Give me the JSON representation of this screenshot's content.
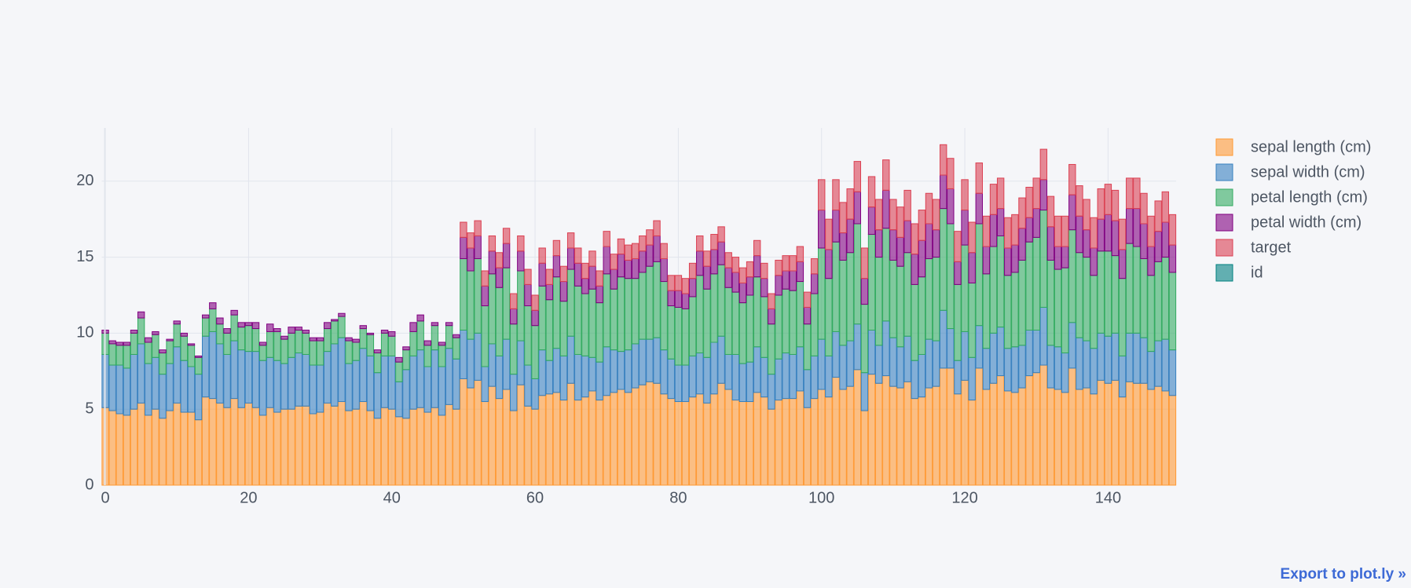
{
  "chart_data": {
    "type": "bar",
    "barmode": "stack",
    "x": [
      0,
      1,
      2,
      3,
      4,
      5,
      6,
      7,
      8,
      9,
      10,
      11,
      12,
      13,
      14,
      15,
      16,
      17,
      18,
      19,
      20,
      21,
      22,
      23,
      24,
      25,
      26,
      27,
      28,
      29,
      30,
      31,
      32,
      33,
      34,
      35,
      36,
      37,
      38,
      39,
      40,
      41,
      42,
      43,
      44,
      45,
      46,
      47,
      48,
      49,
      50,
      51,
      52,
      53,
      54,
      55,
      56,
      57,
      58,
      59,
      60,
      61,
      62,
      63,
      64,
      65,
      66,
      67,
      68,
      69,
      70,
      71,
      72,
      73,
      74,
      75,
      76,
      77,
      78,
      79,
      80,
      81,
      82,
      83,
      84,
      85,
      86,
      87,
      88,
      89,
      90,
      91,
      92,
      93,
      94,
      95,
      96,
      97,
      98,
      99,
      100,
      101,
      102,
      103,
      104,
      105,
      106,
      107,
      108,
      109,
      110,
      111,
      112,
      113,
      114,
      115,
      116,
      117,
      118,
      119,
      120,
      121,
      122,
      123,
      124,
      125,
      126,
      127,
      128,
      129,
      130,
      131,
      132,
      133,
      134,
      135,
      136,
      137,
      138,
      139,
      140,
      141,
      142,
      143,
      144,
      145,
      146,
      147,
      148,
      149
    ],
    "series": [
      {
        "name": "sepal length (cm)",
        "color": "#ff9933",
        "values": [
          5.1,
          4.9,
          4.7,
          4.6,
          5.0,
          5.4,
          4.6,
          5.0,
          4.4,
          4.9,
          5.4,
          4.8,
          4.8,
          4.3,
          5.8,
          5.7,
          5.4,
          5.1,
          5.7,
          5.1,
          5.4,
          5.1,
          4.6,
          5.1,
          4.8,
          5.0,
          5.0,
          5.2,
          5.2,
          4.7,
          4.8,
          5.4,
          5.2,
          5.5,
          4.9,
          5.0,
          5.5,
          4.9,
          4.4,
          5.1,
          5.0,
          4.5,
          4.4,
          5.0,
          5.1,
          4.8,
          5.1,
          4.6,
          5.3,
          5.0,
          7.0,
          6.4,
          6.9,
          5.5,
          6.5,
          5.7,
          6.3,
          4.9,
          6.6,
          5.2,
          5.0,
          5.9,
          6.0,
          6.1,
          5.6,
          6.7,
          5.6,
          5.8,
          6.2,
          5.6,
          5.9,
          6.1,
          6.3,
          6.1,
          6.4,
          6.6,
          6.8,
          6.7,
          6.0,
          5.7,
          5.5,
          5.5,
          5.8,
          6.0,
          5.4,
          6.0,
          6.7,
          6.3,
          5.6,
          5.5,
          5.5,
          6.1,
          5.8,
          5.0,
          5.6,
          5.7,
          5.7,
          6.2,
          5.1,
          5.7,
          6.3,
          5.8,
          7.1,
          6.3,
          6.5,
          7.6,
          4.9,
          7.3,
          6.7,
          7.2,
          6.5,
          6.4,
          6.8,
          5.7,
          5.8,
          6.4,
          6.5,
          7.7,
          7.7,
          6.0,
          6.9,
          5.6,
          7.7,
          6.3,
          6.7,
          7.2,
          6.2,
          6.1,
          6.4,
          7.2,
          7.4,
          7.9,
          6.4,
          6.3,
          6.1,
          7.7,
          6.3,
          6.4,
          6.0,
          6.9,
          6.7,
          6.9,
          5.8,
          6.8,
          6.7,
          6.7,
          6.3,
          6.5,
          6.2,
          5.9
        ]
      },
      {
        "name": "sepal width (cm)",
        "color": "#3780bf",
        "values": [
          3.5,
          3.0,
          3.2,
          3.1,
          3.6,
          3.9,
          3.4,
          3.4,
          2.9,
          3.1,
          3.7,
          3.4,
          3.0,
          3.0,
          4.0,
          4.4,
          3.9,
          3.5,
          3.8,
          3.8,
          3.4,
          3.7,
          3.6,
          3.3,
          3.4,
          3.0,
          3.4,
          3.5,
          3.4,
          3.2,
          3.1,
          3.4,
          4.1,
          4.2,
          3.1,
          3.2,
          3.5,
          3.6,
          3.0,
          3.4,
          3.5,
          2.3,
          3.2,
          3.5,
          3.8,
          3.0,
          3.8,
          3.2,
          3.7,
          3.3,
          3.2,
          3.2,
          3.1,
          2.3,
          2.8,
          2.8,
          3.3,
          2.4,
          2.9,
          2.7,
          2.0,
          3.0,
          2.2,
          2.9,
          2.9,
          3.1,
          3.0,
          2.7,
          2.2,
          2.5,
          3.2,
          2.8,
          2.5,
          2.8,
          2.9,
          3.0,
          2.8,
          3.0,
          2.9,
          2.6,
          2.4,
          2.4,
          2.7,
          2.7,
          3.0,
          3.4,
          3.1,
          2.3,
          3.0,
          2.5,
          2.6,
          3.0,
          2.6,
          2.3,
          2.7,
          3.0,
          2.9,
          2.9,
          2.5,
          2.8,
          3.3,
          2.7,
          3.0,
          2.9,
          3.0,
          3.0,
          2.5,
          2.9,
          2.5,
          3.6,
          3.2,
          2.7,
          3.0,
          2.5,
          2.8,
          3.2,
          3.0,
          3.8,
          2.6,
          2.2,
          3.2,
          2.8,
          2.8,
          2.7,
          3.3,
          3.2,
          2.8,
          3.0,
          2.8,
          3.0,
          2.8,
          3.8,
          2.8,
          2.8,
          2.6,
          3.0,
          3.4,
          3.1,
          3.0,
          3.1,
          3.1,
          3.1,
          2.7,
          3.2,
          3.3,
          3.0,
          2.5,
          3.0,
          3.4,
          3.0
        ]
      },
      {
        "name": "petal length (cm)",
        "color": "#32ab60",
        "values": [
          1.4,
          1.4,
          1.3,
          1.5,
          1.4,
          1.7,
          1.4,
          1.5,
          1.4,
          1.5,
          1.5,
          1.6,
          1.4,
          1.1,
          1.2,
          1.5,
          1.3,
          1.4,
          1.7,
          1.5,
          1.7,
          1.5,
          1.0,
          1.7,
          1.9,
          1.6,
          1.6,
          1.5,
          1.4,
          1.6,
          1.6,
          1.5,
          1.5,
          1.4,
          1.5,
          1.2,
          1.3,
          1.4,
          1.3,
          1.5,
          1.3,
          1.3,
          1.3,
          1.6,
          1.9,
          1.4,
          1.6,
          1.4,
          1.5,
          1.4,
          4.7,
          4.5,
          4.9,
          4.0,
          4.6,
          4.5,
          4.7,
          3.3,
          4.6,
          3.9,
          3.5,
          4.2,
          4.0,
          4.7,
          3.6,
          4.4,
          4.5,
          4.1,
          4.5,
          3.9,
          4.8,
          4.0,
          4.9,
          4.7,
          4.3,
          4.4,
          4.8,
          5.0,
          4.5,
          3.5,
          3.8,
          3.7,
          3.9,
          5.1,
          4.5,
          4.5,
          4.7,
          4.4,
          4.1,
          4.0,
          4.4,
          4.6,
          4.0,
          3.3,
          4.2,
          4.2,
          4.2,
          4.3,
          3.0,
          4.1,
          6.0,
          5.1,
          5.9,
          5.6,
          5.8,
          6.6,
          4.5,
          6.3,
          5.8,
          6.1,
          5.1,
          5.3,
          5.5,
          5.0,
          5.1,
          5.3,
          5.5,
          6.7,
          6.9,
          5.0,
          5.7,
          4.9,
          6.7,
          4.9,
          5.7,
          6.0,
          4.8,
          4.9,
          5.6,
          5.8,
          6.1,
          6.4,
          5.6,
          5.1,
          5.6,
          6.1,
          5.6,
          5.5,
          4.8,
          5.4,
          5.6,
          5.1,
          5.1,
          5.9,
          5.7,
          5.2,
          5.0,
          5.2,
          5.4,
          5.1
        ]
      },
      {
        "name": "petal width (cm)",
        "color": "#800080",
        "values": [
          0.2,
          0.2,
          0.2,
          0.2,
          0.2,
          0.4,
          0.3,
          0.2,
          0.2,
          0.1,
          0.2,
          0.2,
          0.1,
          0.1,
          0.2,
          0.4,
          0.4,
          0.3,
          0.3,
          0.3,
          0.2,
          0.4,
          0.2,
          0.5,
          0.2,
          0.2,
          0.4,
          0.2,
          0.2,
          0.2,
          0.2,
          0.4,
          0.1,
          0.2,
          0.2,
          0.2,
          0.2,
          0.1,
          0.2,
          0.2,
          0.3,
          0.3,
          0.2,
          0.6,
          0.4,
          0.3,
          0.2,
          0.2,
          0.2,
          0.2,
          1.4,
          1.5,
          1.5,
          1.3,
          1.5,
          1.3,
          1.6,
          1.0,
          1.3,
          1.4,
          1.0,
          1.5,
          1.0,
          1.4,
          1.3,
          1.4,
          1.5,
          1.0,
          1.5,
          1.1,
          1.8,
          1.3,
          1.5,
          1.2,
          1.3,
          1.4,
          1.4,
          1.7,
          1.5,
          1.0,
          1.1,
          1.0,
          1.2,
          1.6,
          1.5,
          1.6,
          1.5,
          1.3,
          1.3,
          1.3,
          1.2,
          1.4,
          1.2,
          1.0,
          1.3,
          1.2,
          1.3,
          1.3,
          1.1,
          1.3,
          2.5,
          1.9,
          2.1,
          1.8,
          2.2,
          2.1,
          1.7,
          1.8,
          1.8,
          2.5,
          2.0,
          1.9,
          2.1,
          2.0,
          2.4,
          2.3,
          1.8,
          2.2,
          2.3,
          1.5,
          2.3,
          2.0,
          2.0,
          1.8,
          2.1,
          1.8,
          1.8,
          1.8,
          2.1,
          1.6,
          1.9,
          2.0,
          2.2,
          1.5,
          1.4,
          2.3,
          2.4,
          1.8,
          1.8,
          2.1,
          2.4,
          2.3,
          1.9,
          2.3,
          2.5,
          2.3,
          1.9,
          2.0,
          2.3,
          1.8
        ]
      },
      {
        "name": "target",
        "color": "#db4052",
        "values": [
          0,
          0,
          0,
          0,
          0,
          0,
          0,
          0,
          0,
          0,
          0,
          0,
          0,
          0,
          0,
          0,
          0,
          0,
          0,
          0,
          0,
          0,
          0,
          0,
          0,
          0,
          0,
          0,
          0,
          0,
          0,
          0,
          0,
          0,
          0,
          0,
          0,
          0,
          0,
          0,
          0,
          0,
          0,
          0,
          0,
          0,
          0,
          0,
          0,
          0,
          1,
          1,
          1,
          1,
          1,
          1,
          1,
          1,
          1,
          1,
          1,
          1,
          1,
          1,
          1,
          1,
          1,
          1,
          1,
          1,
          1,
          1,
          1,
          1,
          1,
          1,
          1,
          1,
          1,
          1,
          1,
          1,
          1,
          1,
          1,
          1,
          1,
          1,
          1,
          1,
          1,
          1,
          1,
          1,
          1,
          1,
          1,
          1,
          1,
          1,
          2,
          2,
          2,
          2,
          2,
          2,
          2,
          2,
          2,
          2,
          2,
          2,
          2,
          2,
          2,
          2,
          2,
          2,
          2,
          2,
          2,
          2,
          2,
          2,
          2,
          2,
          2,
          2,
          2,
          2,
          2,
          2,
          2,
          2,
          2,
          2,
          2,
          2,
          2,
          2,
          2,
          2,
          2,
          2,
          2,
          2,
          2,
          2,
          2,
          2
        ]
      },
      {
        "name": "id",
        "color": "#008080",
        "values": [
          null,
          null,
          null,
          null,
          null,
          null,
          null,
          null,
          null,
          null,
          null,
          null,
          null,
          null,
          null,
          null,
          null,
          null,
          null,
          null,
          null,
          null,
          null,
          null,
          null,
          null,
          null,
          null,
          null,
          null,
          null,
          null,
          null,
          null,
          null,
          null,
          null,
          null,
          null,
          null,
          null,
          null,
          null,
          null,
          null,
          null,
          null,
          null,
          null,
          null,
          null,
          null,
          null,
          null,
          null,
          null,
          null,
          null,
          null,
          null,
          null,
          null,
          null,
          null,
          null,
          null,
          null,
          null,
          null,
          null,
          null,
          null,
          null,
          null,
          null,
          null,
          null,
          null,
          null,
          null,
          null,
          null,
          null,
          null,
          null,
          null,
          null,
          null,
          null,
          null,
          null,
          null,
          null,
          null,
          null,
          null,
          null,
          null,
          null,
          null,
          null,
          null,
          null,
          null,
          null,
          null,
          null,
          null,
          null,
          null,
          null,
          null,
          null,
          null,
          null,
          null,
          null,
          null,
          null,
          null,
          null,
          null,
          null,
          null,
          null,
          null,
          null,
          null,
          null,
          null,
          null,
          null,
          null,
          null,
          null,
          null,
          null,
          null,
          null,
          null,
          null,
          null,
          null,
          null,
          null,
          null,
          null,
          null,
          null,
          null
        ]
      }
    ],
    "xlim": [
      -0.5,
      149.5
    ],
    "xticks": [
      0,
      20,
      40,
      60,
      80,
      100,
      120,
      140
    ],
    "ylim": [
      0,
      23.5
    ],
    "yticks": [
      0,
      5,
      10,
      15,
      20
    ],
    "grid": true,
    "legend": "right"
  },
  "export_link": "Export to plot.ly »"
}
